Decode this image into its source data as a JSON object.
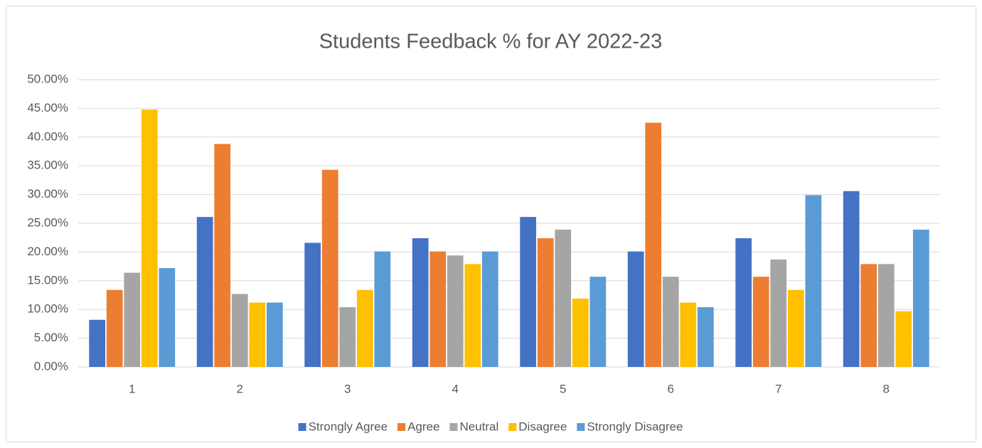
{
  "chart_data": {
    "type": "bar",
    "title": "Students Feedback % for AY 2022-23",
    "categories": [
      "1",
      "2",
      "3",
      "4",
      "5",
      "6",
      "7",
      "8"
    ],
    "series": [
      {
        "name": "Strongly Agree",
        "color": "#4472c4",
        "values": [
          8.2,
          26.1,
          21.6,
          22.4,
          26.1,
          20.1,
          22.4,
          30.6
        ]
      },
      {
        "name": "Agree",
        "color": "#ed7d31",
        "values": [
          13.4,
          38.8,
          34.3,
          20.1,
          22.4,
          42.5,
          15.7,
          17.9
        ]
      },
      {
        "name": "Neutral",
        "color": "#a5a5a5",
        "values": [
          16.4,
          12.7,
          10.4,
          19.4,
          23.9,
          15.7,
          18.7,
          17.9
        ]
      },
      {
        "name": "Disagree",
        "color": "#ffc000",
        "values": [
          44.8,
          11.2,
          13.4,
          17.9,
          11.9,
          11.2,
          13.4,
          9.7
        ]
      },
      {
        "name": "Strongly Disagree",
        "color": "#5b9bd5",
        "values": [
          17.2,
          11.2,
          20.1,
          20.1,
          15.7,
          10.4,
          29.9,
          23.9
        ]
      }
    ],
    "ylim": [
      0,
      50
    ],
    "yticks": [
      {
        "value": 0,
        "label": "0.00%"
      },
      {
        "value": 5,
        "label": "5.00%"
      },
      {
        "value": 10,
        "label": "10.00%"
      },
      {
        "value": 15,
        "label": "15.00%"
      },
      {
        "value": 20,
        "label": "20.00%"
      },
      {
        "value": 25,
        "label": "25.00%"
      },
      {
        "value": 30,
        "label": "30.00%"
      },
      {
        "value": 35,
        "label": "35.00%"
      },
      {
        "value": 40,
        "label": "40.00%"
      },
      {
        "value": 45,
        "label": "45.00%"
      },
      {
        "value": 50,
        "label": "50.00%"
      }
    ],
    "grid": true,
    "legend": "bottom"
  }
}
